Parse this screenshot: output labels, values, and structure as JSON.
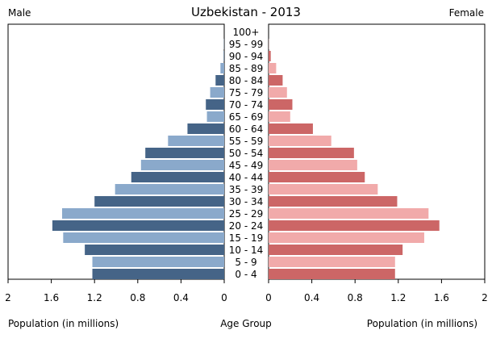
{
  "chart_data": {
    "type": "bar",
    "title": "Uzbekistan - 2013",
    "left_label": "Male",
    "right_label": "Female",
    "xlabel_left": "Population (in millions)",
    "xlabel_center": "Age Group",
    "xlabel_right": "Population (in millions)",
    "xlim": [
      0,
      2
    ],
    "ticks": [
      2,
      1.6,
      1.2,
      0.8,
      0.4,
      0
    ],
    "ticks_right": [
      0,
      0.4,
      0.8,
      1.2,
      1.6,
      2
    ],
    "tick_labels_left": [
      "2",
      "1.6",
      "1.2",
      "0.8",
      "0.4",
      "0"
    ],
    "tick_labels_right": [
      "0",
      "0.4",
      "0.8",
      "1.2",
      "1.6",
      "2"
    ],
    "categories": [
      "100+",
      "95 - 99",
      "90 - 94",
      "85 - 89",
      "80 - 84",
      "75 - 79",
      "70 - 74",
      "65 - 69",
      "60 - 64",
      "55 - 59",
      "50 - 54",
      "45 - 49",
      "40 - 44",
      "35 - 39",
      "30 - 34",
      "25 - 29",
      "20 - 24",
      "15 - 19",
      "10 - 14",
      "5 - 9",
      "0 - 4"
    ],
    "series": [
      {
        "name": "Male",
        "values": [
          0.0,
          0.002,
          0.005,
          0.035,
          0.08,
          0.13,
          0.17,
          0.16,
          0.34,
          0.52,
          0.73,
          0.77,
          0.86,
          1.01,
          1.2,
          1.5,
          1.59,
          1.49,
          1.29,
          1.22,
          1.22
        ]
      },
      {
        "name": "Female",
        "values": [
          0.0,
          0.002,
          0.02,
          0.07,
          0.13,
          0.17,
          0.22,
          0.2,
          0.41,
          0.58,
          0.79,
          0.82,
          0.89,
          1.01,
          1.19,
          1.48,
          1.58,
          1.44,
          1.24,
          1.17,
          1.17
        ]
      }
    ],
    "colors": {
      "male_dark": "#456487",
      "male_light": "#8aa9cb",
      "female_dark": "#cc6666",
      "female_light": "#f1aaaa",
      "axis": "#000000"
    }
  }
}
